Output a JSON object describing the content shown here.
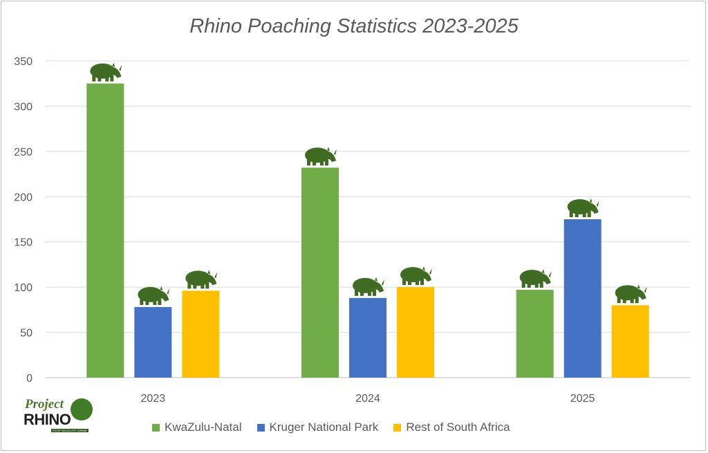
{
  "chart_data": {
    "type": "bar",
    "title": "Rhino Poaching Statistics 2023-2025",
    "categories": [
      "2023",
      "2024",
      "2025"
    ],
    "series": [
      {
        "name": "KwaZulu-Natal",
        "color": "#70ad47",
        "values": [
          325,
          232,
          97
        ]
      },
      {
        "name": "Kruger National Park",
        "color": "#4472c4",
        "values": [
          78,
          88,
          175
        ]
      },
      {
        "name": "Rest of South Africa",
        "color": "#ffc000",
        "values": [
          96,
          100,
          80
        ]
      }
    ],
    "ylim": [
      0,
      350
    ],
    "yticks": [
      0,
      50,
      100,
      150,
      200,
      250,
      300,
      350
    ],
    "gridlines": true,
    "legend": "bottom",
    "marker_icon": "rhino-icon",
    "marker_color": "#3f6b22"
  },
  "logo": {
    "line1": "Project",
    "line2": "RHINO",
    "tagline": "STOP WILDLIFE CRIME"
  }
}
